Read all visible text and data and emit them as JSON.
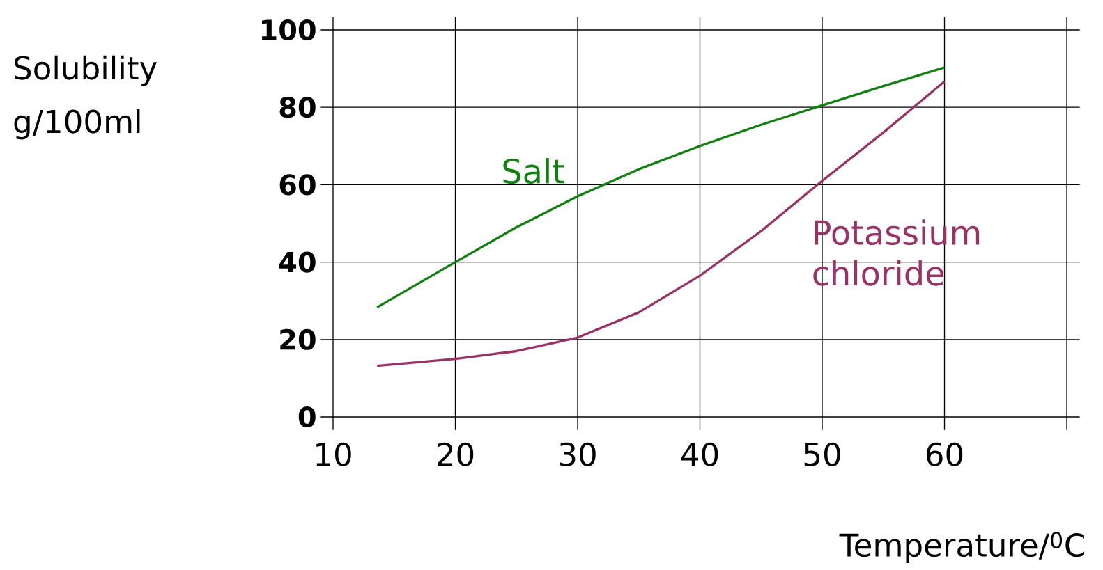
{
  "chart_data": {
    "type": "line",
    "xlabel": "Temperature/$^{0}$C",
    "ylabel": "Solubility g/100ml",
    "xlim": [
      10,
      70
    ],
    "ylim": [
      0,
      100
    ],
    "xticks": [
      10,
      20,
      30,
      40,
      50,
      60,
      {
        "value": 70,
        "label": null
      }
    ],
    "yticks": [
      0,
      20,
      40,
      60,
      80,
      100
    ],
    "grid": true,
    "series": [
      {
        "name": "Salt",
        "color": "#118011",
        "x": [
          13.6,
          20,
          25,
          30,
          35,
          40,
          45,
          50,
          55,
          60
        ],
        "values": [
          28.3,
          40,
          49,
          57,
          64,
          70,
          75.5,
          80.5,
          85.5,
          90.3
        ]
      },
      {
        "name": "Potassium chloride",
        "color": "#993366",
        "x": [
          13.6,
          20,
          25,
          30,
          35,
          40,
          45,
          50,
          55,
          60
        ],
        "values": [
          13.2,
          15,
          17,
          20.5,
          27,
          36.5,
          48,
          61,
          73.5,
          86.7
        ]
      }
    ]
  }
}
